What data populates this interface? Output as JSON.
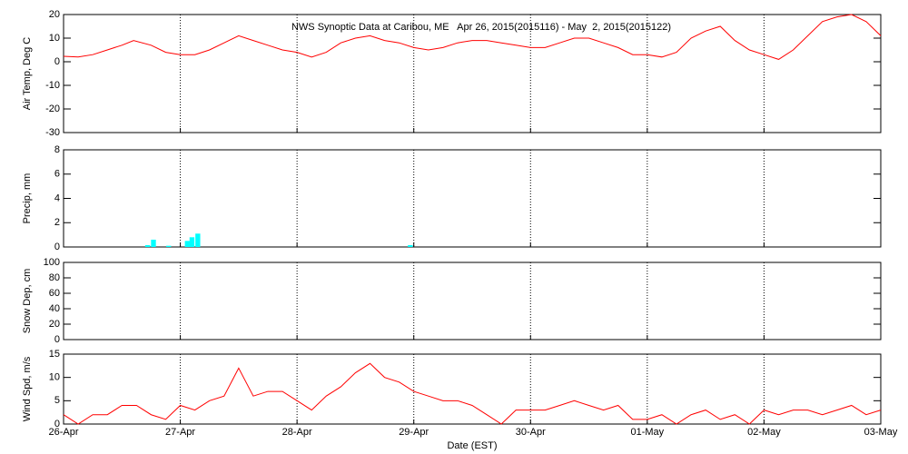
{
  "chart_data": [
    {
      "type": "line",
      "title": "NWS Synoptic Data at Caribou, ME   Apr 26, 2015(2015116) - May  2, 2015(2015122)",
      "y_label": "Air Temp, Deg C",
      "color": "#ff0000",
      "x": [
        0,
        0.125,
        0.25,
        0.375,
        0.5,
        0.6,
        0.75,
        0.875,
        1,
        1.125,
        1.25,
        1.375,
        1.5,
        1.625,
        1.75,
        1.875,
        2,
        2.125,
        2.25,
        2.375,
        2.5,
        2.625,
        2.75,
        2.875,
        3,
        3.125,
        3.25,
        3.375,
        3.5,
        3.625,
        3.75,
        3.875,
        4,
        4.125,
        4.25,
        4.375,
        4.5,
        4.625,
        4.75,
        4.875,
        5,
        5.125,
        5.25,
        5.375,
        5.5,
        5.625,
        5.75,
        5.875,
        6,
        6.125,
        6.25,
        6.375,
        6.5,
        6.625,
        6.75,
        6.875,
        7
      ],
      "values": [
        2.3,
        2,
        3,
        5,
        7,
        9,
        7,
        4,
        3,
        3,
        5,
        8,
        11,
        9,
        7,
        5,
        4,
        2,
        4,
        8,
        10,
        11,
        9,
        8,
        6,
        5,
        6,
        8,
        9,
        9,
        8,
        7,
        6,
        6,
        8,
        10,
        10,
        8,
        6,
        3,
        3,
        2,
        4,
        10,
        13,
        15,
        9,
        5,
        3,
        1,
        5,
        11,
        17,
        19,
        20,
        17,
        11
      ],
      "ylim": [
        -30,
        20
      ],
      "yticks": [
        -30,
        -20,
        -10,
        0,
        10,
        20
      ]
    },
    {
      "type": "bar",
      "y_label": "Precip, mm",
      "color": "#00ffff",
      "x": [
        0.72,
        0.77,
        0.9,
        1.06,
        1.1,
        1.15,
        2.97
      ],
      "values": [
        0.15,
        0.6,
        0.1,
        0.5,
        0.8,
        1.1,
        0.15
      ],
      "ylim": [
        0,
        8
      ],
      "yticks": [
        0,
        2,
        4,
        6,
        8
      ]
    },
    {
      "type": "line",
      "y_label": "Snow Dep, cm",
      "color": "#ff0000",
      "x": [],
      "values": [],
      "ylim": [
        0,
        100
      ],
      "yticks": [
        0,
        20,
        40,
        60,
        80,
        100
      ]
    },
    {
      "type": "line",
      "y_label": "Wind Spd, m/s",
      "x_label": "Date (EST)",
      "color": "#ff0000",
      "x": [
        0,
        0.125,
        0.25,
        0.375,
        0.5,
        0.625,
        0.75,
        0.875,
        1,
        1.125,
        1.25,
        1.375,
        1.5,
        1.625,
        1.75,
        1.875,
        2,
        2.125,
        2.25,
        2.375,
        2.5,
        2.625,
        2.75,
        2.875,
        3,
        3.125,
        3.25,
        3.375,
        3.5,
        3.625,
        3.75,
        3.875,
        4,
        4.125,
        4.25,
        4.375,
        4.5,
        4.625,
        4.75,
        4.875,
        5,
        5.125,
        5.25,
        5.375,
        5.5,
        5.625,
        5.75,
        5.875,
        6,
        6.125,
        6.25,
        6.375,
        6.5,
        6.625,
        6.75,
        6.875,
        7
      ],
      "values": [
        2,
        0,
        2,
        2,
        4,
        4,
        2,
        1,
        4,
        3,
        5,
        6,
        12,
        6,
        7,
        7,
        5,
        3,
        6,
        8,
        11,
        13,
        10,
        9,
        7,
        6,
        5,
        5,
        4,
        2,
        0,
        3,
        3,
        3,
        4,
        5,
        4,
        3,
        4,
        1,
        1,
        2,
        0,
        2,
        3,
        1,
        2,
        0,
        3,
        2,
        3,
        3,
        2,
        3,
        4,
        2,
        3
      ],
      "ylim": [
        0,
        15
      ],
      "yticks": [
        0,
        5,
        10,
        15
      ],
      "xlim": [
        0,
        7
      ],
      "xticks": [
        {
          "value": 0,
          "label": "26-Apr"
        },
        {
          "value": 1,
          "label": "27-Apr"
        },
        {
          "value": 2,
          "label": "28-Apr"
        },
        {
          "value": 3,
          "label": "29-Apr"
        },
        {
          "value": 4,
          "label": "30-Apr"
        },
        {
          "value": 5,
          "label": "01-May"
        },
        {
          "value": 6,
          "label": "02-May"
        },
        {
          "value": 7,
          "label": "03-May"
        }
      ]
    }
  ]
}
